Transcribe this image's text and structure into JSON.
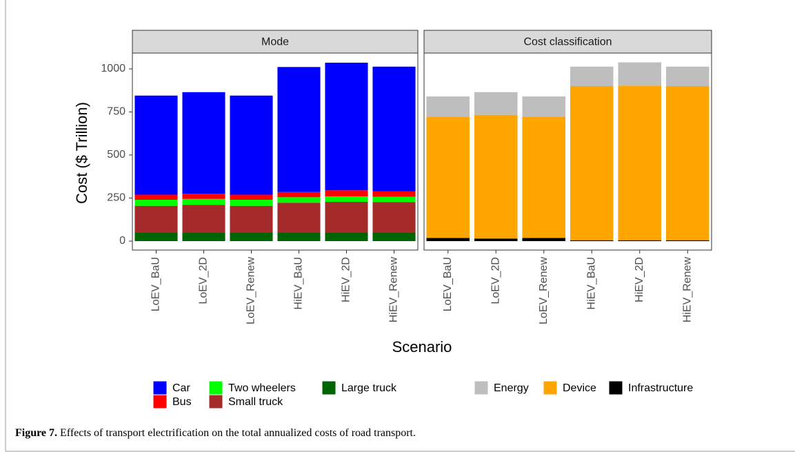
{
  "chart_data": [
    {
      "type": "bar",
      "stacked": true,
      "panel_title": "Mode",
      "y_label": "Cost ($ Trillion)",
      "x_label": "Scenario",
      "categories": [
        "LoEV_BaU",
        "LoEV_2D",
        "LoEV_Renew",
        "HiEV_BaU",
        "HiEV_2D",
        "HiEV_Renew"
      ],
      "ylim": [
        -52,
        1092
      ],
      "yticks": [
        0,
        250,
        500,
        750,
        1000
      ],
      "series": [
        {
          "name": "Car",
          "color": "#0000ff",
          "values": [
            575,
            590,
            575,
            726,
            741,
            723
          ]
        },
        {
          "name": "Bus",
          "color": "#ff0000",
          "values": [
            30,
            30,
            30,
            30,
            35,
            32
          ]
        },
        {
          "name": "Two wheelers",
          "color": "#00ff00",
          "values": [
            35,
            35,
            35,
            32,
            32,
            32
          ]
        },
        {
          "name": "Small truck",
          "color": "#a52a2a",
          "values": [
            157,
            162,
            157,
            175,
            180,
            178
          ]
        },
        {
          "name": "Large truck",
          "color": "#006400",
          "values": [
            48,
            48,
            48,
            48,
            48,
            48
          ]
        }
      ]
    },
    {
      "type": "bar",
      "stacked": true,
      "panel_title": "Cost classification",
      "categories": [
        "LoEV_BaU",
        "LoEV_2D",
        "LoEV_Renew",
        "HiEV_BaU",
        "HiEV_2D",
        "HiEV_Renew"
      ],
      "ylim": [
        -52,
        1092
      ],
      "series": [
        {
          "name": "Energy",
          "color": "#bebebe",
          "values": [
            117,
            132,
            117,
            113,
            135,
            113
          ]
        },
        {
          "name": "Device",
          "color": "#ffa500",
          "values": [
            705,
            718,
            705,
            895,
            898,
            895
          ]
        },
        {
          "name": "Infrastructure",
          "color": "#000000",
          "values": [
            18,
            15,
            18,
            5,
            5,
            5
          ]
        }
      ]
    }
  ],
  "caption": {
    "label": "Figure 7.",
    "text": "Effects of transport electrification on the total annualized costs of road transport."
  }
}
